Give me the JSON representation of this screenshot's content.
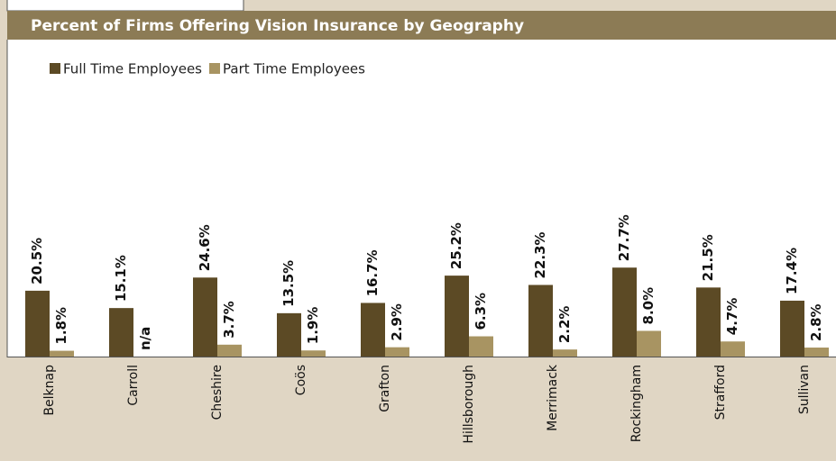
{
  "chart_data": {
    "type": "bar",
    "title": "Percent of Firms Offering Vision Insurance by Geography",
    "categories": [
      "Belknap",
      "Carroll",
      "Cheshire",
      "Coös",
      "Grafton",
      "Hillsborough",
      "Merrimack",
      "Rockingham",
      "Strafford",
      "Sullivan"
    ],
    "series": [
      {
        "name": "Full Time Employees",
        "color": "#5c4a25",
        "values": [
          20.5,
          15.1,
          24.6,
          13.5,
          16.7,
          25.2,
          22.3,
          27.7,
          21.5,
          17.4
        ],
        "value_labels": [
          "20.5%",
          "15.1%",
          "24.6%",
          "13.5%",
          "16.7%",
          "25.2%",
          "22.3%",
          "27.7%",
          "21.5%",
          "17.4%"
        ]
      },
      {
        "name": "Part Time Employees",
        "color": "#a89462",
        "values": [
          1.8,
          null,
          3.7,
          1.9,
          2.9,
          6.3,
          2.2,
          8.0,
          4.7,
          2.8
        ],
        "value_labels": [
          "1.8%",
          "n/a",
          "3.7%",
          "1.9%",
          "2.9%",
          "6.3%",
          "2.2%",
          "8.0%",
          "4.7%",
          "2.8%"
        ]
      }
    ],
    "ylim": [
      0,
      30
    ],
    "legend": "top-left"
  }
}
